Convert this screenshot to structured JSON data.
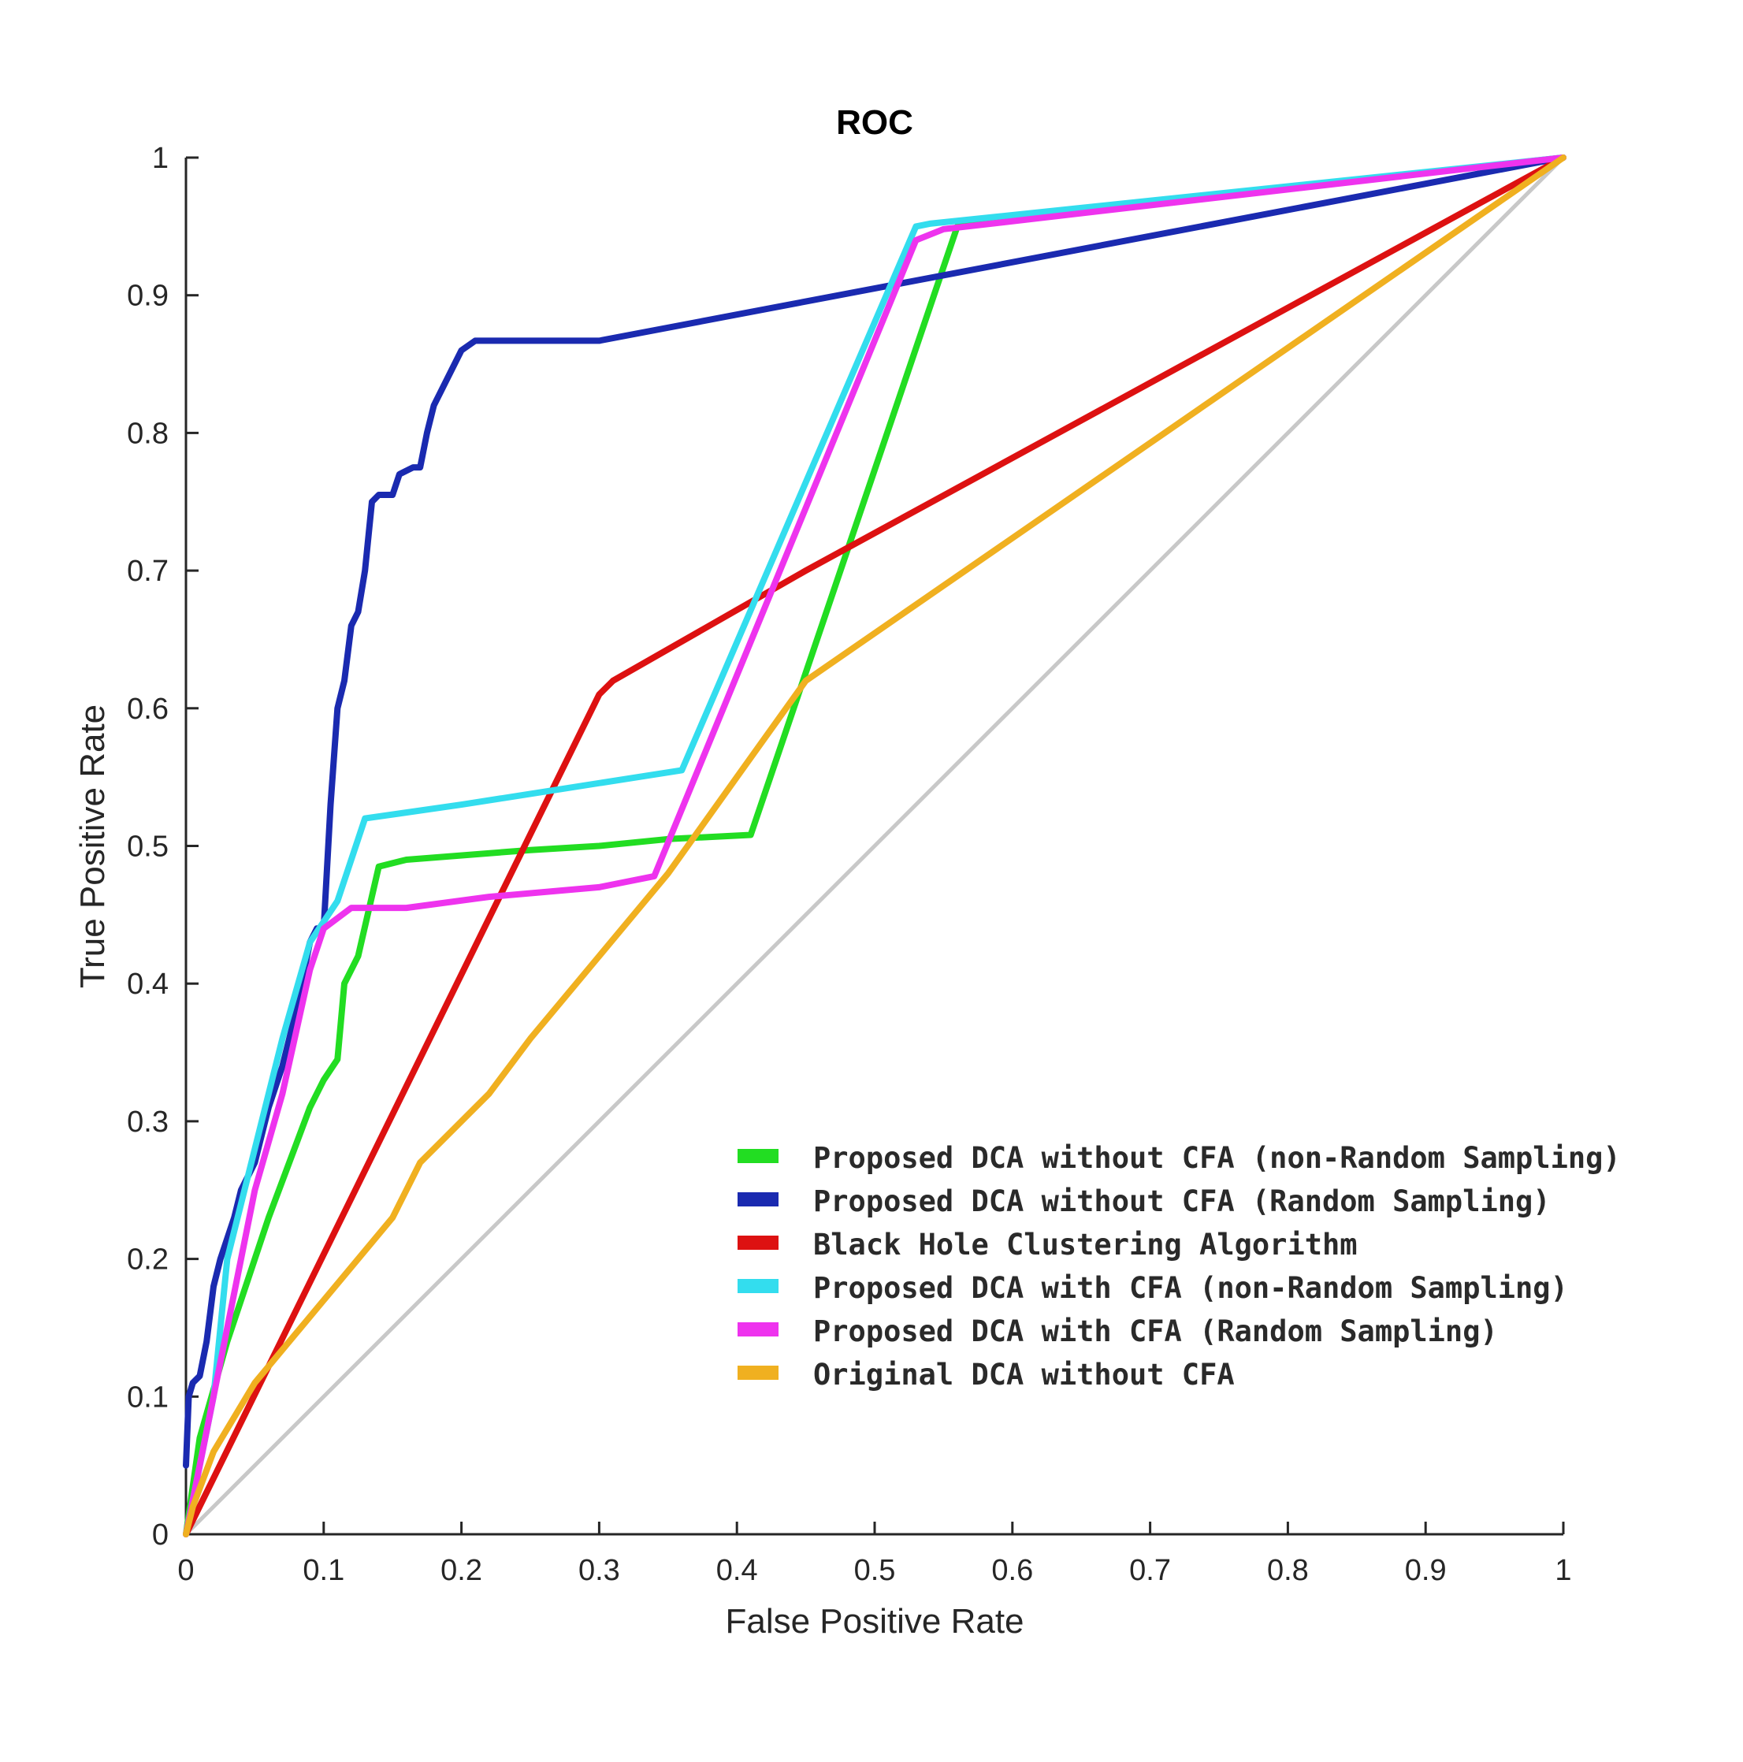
{
  "chart_data": {
    "type": "line",
    "title": "ROC",
    "xlabel": "False Positive Rate",
    "ylabel": "True Positive Rate",
    "xlim": [
      0,
      1
    ],
    "ylim": [
      0,
      1
    ],
    "xticks": [
      "0",
      "0.1",
      "0.2",
      "0.3",
      "0.4",
      "0.5",
      "0.6",
      "0.7",
      "0.8",
      "0.9",
      "1"
    ],
    "yticks": [
      "0",
      "0.1",
      "0.2",
      "0.3",
      "0.4",
      "0.5",
      "0.6",
      "0.7",
      "0.8",
      "0.9",
      "1"
    ],
    "grid": false,
    "legend_location": "bottom-right",
    "reference_line": {
      "name": "random",
      "color": "#c8c8c8",
      "x": [
        0,
        1
      ],
      "y": [
        0,
        1
      ]
    },
    "series": [
      {
        "name": "Proposed DCA without CFA (non-Random Sampling)",
        "color": "#22dd22",
        "x": [
          0,
          0.01,
          0.03,
          0.06,
          0.09,
          0.1,
          0.11,
          0.115,
          0.12,
          0.125,
          0.14,
          0.16,
          0.25,
          0.3,
          0.35,
          0.41,
          0.56,
          0.57,
          1.0
        ],
        "y": [
          0,
          0.07,
          0.14,
          0.23,
          0.31,
          0.33,
          0.345,
          0.4,
          0.41,
          0.42,
          0.485,
          0.49,
          0.497,
          0.5,
          0.505,
          0.508,
          0.95,
          0.952,
          1.0
        ]
      },
      {
        "name": "Proposed DCA without CFA (Random Sampling)",
        "color": "#1a2ab0",
        "x": [
          0,
          0.002,
          0.005,
          0.01,
          0.015,
          0.02,
          0.025,
          0.035,
          0.04,
          0.05,
          0.055,
          0.06,
          0.07,
          0.08,
          0.09,
          0.095,
          0.1,
          0.105,
          0.11,
          0.115,
          0.12,
          0.125,
          0.13,
          0.135,
          0.14,
          0.15,
          0.155,
          0.165,
          0.17,
          0.175,
          0.18,
          0.2,
          0.21,
          0.3,
          1.0
        ],
        "y": [
          0.05,
          0.1,
          0.11,
          0.115,
          0.14,
          0.18,
          0.2,
          0.23,
          0.25,
          0.27,
          0.29,
          0.31,
          0.34,
          0.38,
          0.43,
          0.44,
          0.44,
          0.53,
          0.6,
          0.62,
          0.66,
          0.67,
          0.7,
          0.75,
          0.755,
          0.755,
          0.77,
          0.775,
          0.775,
          0.8,
          0.82,
          0.86,
          0.867,
          0.867,
          1.0
        ]
      },
      {
        "name": "Black Hole Clustering Algorithm",
        "color": "#dd1111",
        "x": [
          0,
          0.3,
          0.31,
          0.45,
          1.0
        ],
        "y": [
          0,
          0.61,
          0.62,
          0.7,
          1.0
        ]
      },
      {
        "name": "Proposed DCA with CFA (non-Random Sampling)",
        "color": "#33ddee",
        "x": [
          0,
          0.01,
          0.02,
          0.03,
          0.05,
          0.07,
          0.09,
          0.11,
          0.13,
          0.2,
          0.36,
          0.53,
          0.54,
          1.0
        ],
        "y": [
          0,
          0.05,
          0.1,
          0.2,
          0.28,
          0.36,
          0.43,
          0.46,
          0.52,
          0.53,
          0.555,
          0.95,
          0.952,
          1.0
        ]
      },
      {
        "name": "Proposed DCA with CFA (Random Sampling)",
        "color": "#ee33ee",
        "x": [
          0,
          0.01,
          0.03,
          0.05,
          0.07,
          0.09,
          0.1,
          0.12,
          0.16,
          0.22,
          0.3,
          0.34,
          0.53,
          0.55,
          1.0
        ],
        "y": [
          0,
          0.05,
          0.15,
          0.25,
          0.32,
          0.41,
          0.44,
          0.455,
          0.455,
          0.463,
          0.47,
          0.478,
          0.94,
          0.948,
          1.0
        ]
      },
      {
        "name": "Original DCA without CFA",
        "color": "#f0b020",
        "x": [
          0,
          0.005,
          0.02,
          0.05,
          0.1,
          0.15,
          0.17,
          0.2,
          0.22,
          0.25,
          0.3,
          0.35,
          0.4,
          0.45,
          1.0
        ],
        "y": [
          0,
          0.02,
          0.06,
          0.11,
          0.17,
          0.23,
          0.27,
          0.3,
          0.32,
          0.36,
          0.42,
          0.48,
          0.55,
          0.62,
          1.0
        ]
      }
    ]
  }
}
